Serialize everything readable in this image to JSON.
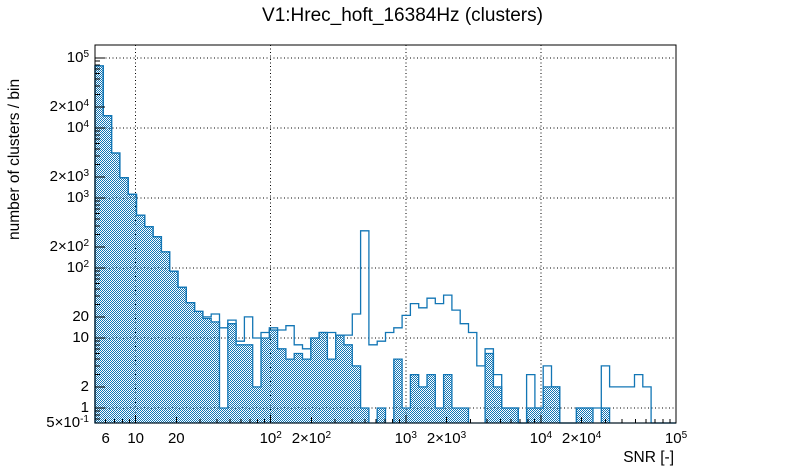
{
  "title": "V1:Hrec_hoft_16384Hz (clusters)",
  "axes": {
    "x": {
      "title": "SNR [-]",
      "scale": "log",
      "min": 5,
      "max": 100000,
      "grid_at": [
        10,
        100,
        1000,
        10000,
        100000
      ],
      "ticks": [
        {
          "v": 6,
          "coef": "6"
        },
        {
          "v": 10,
          "coef": "10"
        },
        {
          "v": 20,
          "coef": "20"
        },
        {
          "v": 100,
          "coef": "10",
          "exp": "2"
        },
        {
          "v": 200,
          "coef": "2×10",
          "exp": "2"
        },
        {
          "v": 1000,
          "coef": "10",
          "exp": "3"
        },
        {
          "v": 2000,
          "coef": "2×10",
          "exp": "3"
        },
        {
          "v": 10000,
          "coef": "10",
          "exp": "4"
        },
        {
          "v": 20000,
          "coef": "2×10",
          "exp": "4"
        },
        {
          "v": 100000,
          "coef": "10",
          "exp": "5"
        }
      ]
    },
    "y": {
      "title": "number of clusters / bin",
      "scale": "log",
      "min": 0.5,
      "max": 153000,
      "grid_at": [
        1,
        10,
        100,
        1000,
        10000,
        100000
      ],
      "ticks": [
        {
          "v": 100000,
          "coef": "10",
          "exp": "5"
        },
        {
          "v": 20000,
          "coef": "2×10",
          "exp": "4"
        },
        {
          "v": 10000,
          "coef": "10",
          "exp": "4"
        },
        {
          "v": 2000,
          "coef": "2×10",
          "exp": "3"
        },
        {
          "v": 1000,
          "coef": "10",
          "exp": "3"
        },
        {
          "v": 200,
          "coef": "2×10",
          "exp": "2"
        },
        {
          "v": 100,
          "coef": "10",
          "exp": "2"
        },
        {
          "v": 20,
          "coef": "20"
        },
        {
          "v": 10,
          "coef": "10"
        },
        {
          "v": 2,
          "coef": "2"
        },
        {
          "v": 1,
          "coef": "1"
        },
        {
          "v": 0.5,
          "coef": "5×10",
          "exp": "-1"
        }
      ]
    }
  },
  "chart_data": {
    "type": "histogram",
    "title": "V1:Hrec_hoft_16384Hz (clusters)",
    "xlabel": "SNR [-]",
    "ylabel": "number of clusters / bin",
    "x_scale": "log",
    "y_scale": "log",
    "xlim": [
      5,
      100000
    ],
    "ylim": [
      0.5,
      153000
    ],
    "grid": "dotted-decades",
    "color": "#1276b5",
    "bins": {
      "min": 5,
      "max": 100000,
      "count": 70,
      "spacing": "log"
    },
    "series": [
      {
        "name": "clusters-hatched-fill",
        "style": "hatched-fill",
        "values": [
          77000,
          15000,
          4400,
          1950,
          1130,
          570,
          390,
          280,
          170,
          90,
          53,
          32,
          24,
          19,
          17,
          1,
          16,
          8,
          8,
          2,
          10,
          13,
          7,
          5,
          6,
          5,
          10,
          12,
          5,
          11,
          8,
          4,
          1,
          0,
          1,
          0,
          5,
          1,
          3,
          2,
          3,
          1,
          3,
          1,
          1,
          0,
          0,
          6,
          2,
          1,
          1,
          0,
          1,
          1,
          2,
          2,
          0,
          0,
          1,
          1,
          0,
          1,
          0,
          0,
          0,
          0,
          0,
          0,
          0,
          0
        ]
      },
      {
        "name": "clusters-outline",
        "style": "line",
        "values": [
          77000,
          15000,
          4400,
          1950,
          1130,
          570,
          390,
          280,
          170,
          90,
          53,
          32,
          24,
          20,
          22,
          14,
          18,
          9,
          20,
          10,
          12,
          14,
          13,
          15,
          8,
          7,
          10,
          12,
          12,
          11,
          11,
          22,
          340,
          8,
          9,
          12,
          14,
          21,
          31,
          27,
          37,
          31,
          41,
          25,
          16,
          12,
          4,
          7,
          3,
          1,
          1,
          0,
          3,
          1,
          4,
          2,
          0,
          0,
          1,
          1,
          1,
          4,
          2,
          2,
          2,
          3,
          2,
          0,
          0,
          0
        ]
      }
    ]
  }
}
